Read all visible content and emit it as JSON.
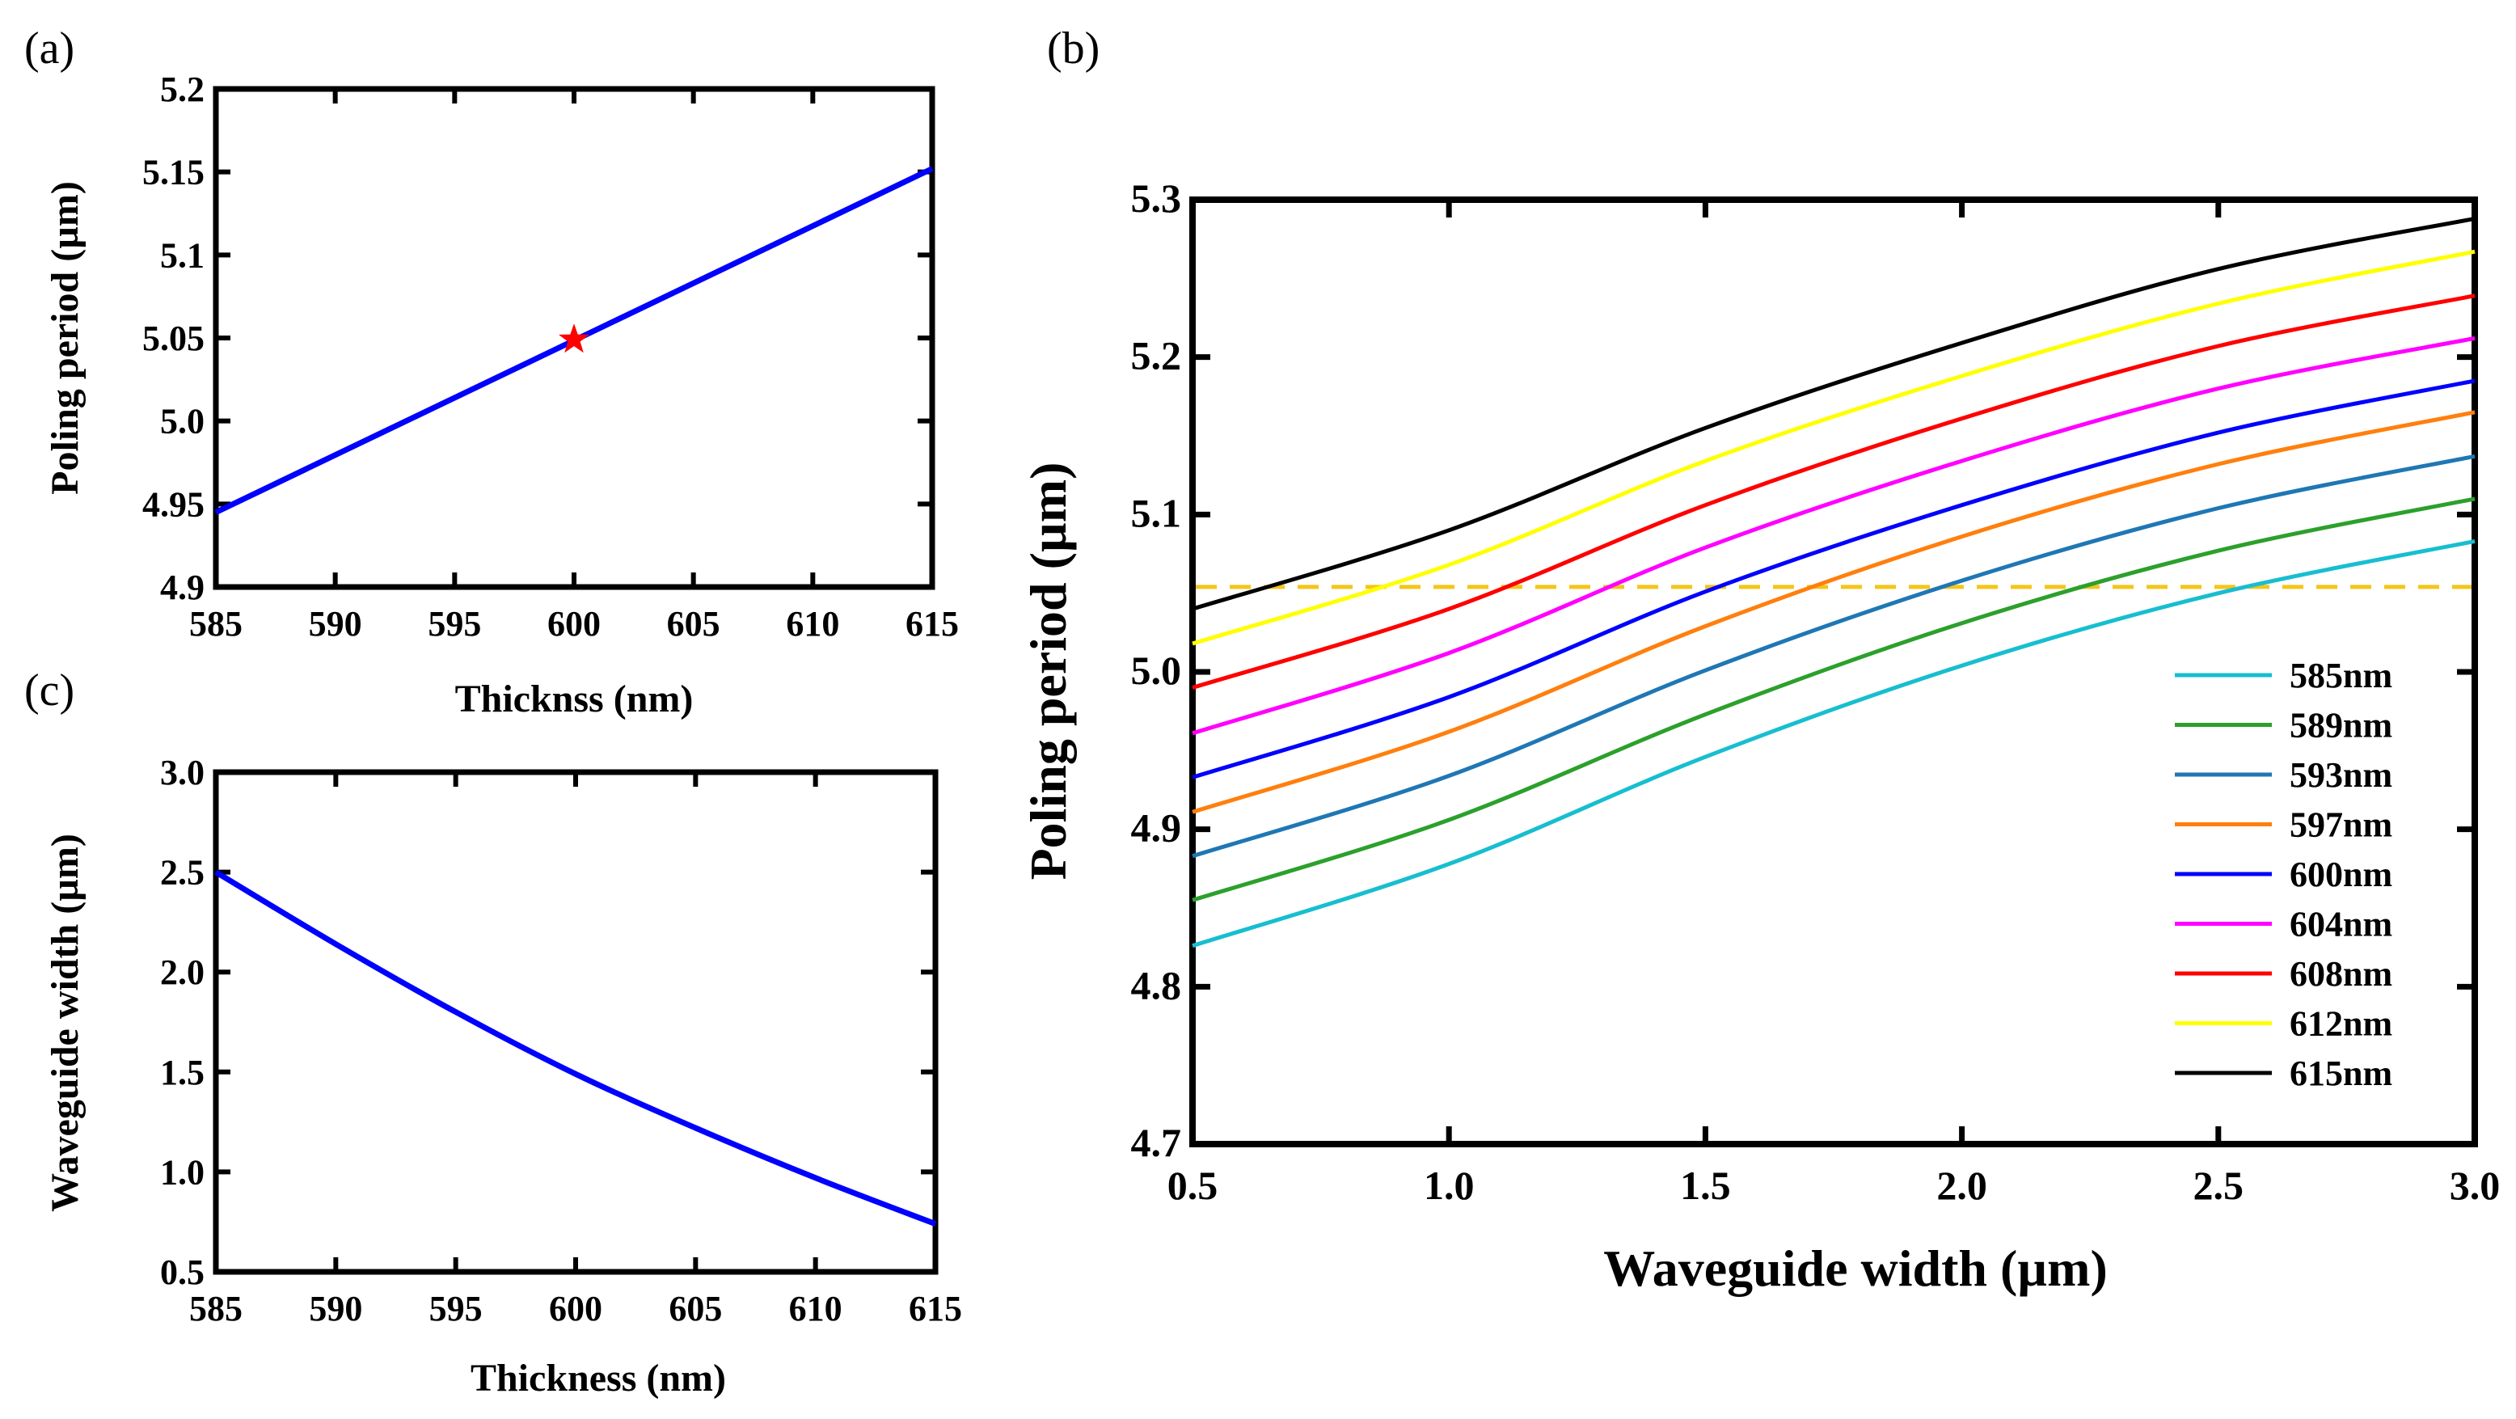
{
  "chart_data": [
    {
      "panel": "(a)",
      "type": "line",
      "xlabel": "Thicknss (nm)",
      "ylabel": "Poling period (µm)",
      "xlim": [
        585,
        615
      ],
      "ylim": [
        4.9,
        5.2
      ],
      "xticks": [
        "585",
        "590",
        "595",
        "600",
        "605",
        "610",
        "615"
      ],
      "yticks": [
        "4.9",
        "4.95",
        "5.0",
        "5.05",
        "5.1",
        "5.15",
        "5.2"
      ],
      "series": [
        {
          "name": "poling period",
          "color": "#0000ff",
          "x": [
            585,
            615
          ],
          "y": [
            4.945,
            5.152
          ]
        }
      ],
      "marker": {
        "x": 600,
        "y": 5.049,
        "color": "#ff0000",
        "symbol": "star"
      }
    },
    {
      "panel": "(b)",
      "type": "line",
      "xlabel": "Waveguide width (µm)",
      "ylabel": "Poling period (µm)",
      "xlim": [
        0.5,
        3.0
      ],
      "ylim": [
        4.7,
        5.3
      ],
      "xticks": [
        "0.5",
        "1.0",
        "1.5",
        "2.0",
        "2.5",
        "3.0"
      ],
      "yticks": [
        "4.7",
        "4.8",
        "4.9",
        "5.0",
        "5.1",
        "5.2",
        "5.3"
      ],
      "legend_position": "lower-right",
      "reference_line": {
        "y": 5.054,
        "color": "#f5c518",
        "style": "dashed"
      },
      "x": [
        0.5,
        1.0,
        1.5,
        2.0,
        2.5,
        3.0
      ],
      "series": [
        {
          "name": "585nm",
          "color": "#17becf",
          "values": [
            4.826,
            4.878,
            4.946,
            5.004,
            5.05,
            5.083
          ]
        },
        {
          "name": "589nm",
          "color": "#2ca02c",
          "values": [
            4.855,
            4.906,
            4.973,
            5.031,
            5.077,
            5.11
          ]
        },
        {
          "name": "593nm",
          "color": "#1f77b4",
          "values": [
            4.883,
            4.934,
            5.001,
            5.058,
            5.104,
            5.137
          ]
        },
        {
          "name": "597nm",
          "color": "#ff7f0e",
          "values": [
            4.911,
            4.962,
            5.029,
            5.086,
            5.132,
            5.165
          ]
        },
        {
          "name": "600nm",
          "color": "#0000ff",
          "values": [
            4.933,
            4.984,
            5.051,
            5.106,
            5.152,
            5.185
          ]
        },
        {
          "name": "604nm",
          "color": "#ff00ff",
          "values": [
            4.961,
            5.012,
            5.079,
            5.134,
            5.18,
            5.212
          ]
        },
        {
          "name": "608nm",
          "color": "#ff0000",
          "values": [
            4.99,
            5.04,
            5.106,
            5.161,
            5.207,
            5.239
          ]
        },
        {
          "name": "612nm",
          "color": "#ffff00",
          "values": [
            5.018,
            5.068,
            5.134,
            5.188,
            5.234,
            5.267
          ]
        },
        {
          "name": "615nm",
          "color": "#000000",
          "values": [
            5.04,
            5.09,
            5.155,
            5.209,
            5.256,
            5.288
          ]
        }
      ]
    },
    {
      "panel": "(c)",
      "type": "line",
      "xlabel": "Thickness (nm)",
      "ylabel": "Waveguide width (µm)",
      "xlim": [
        585,
        615
      ],
      "ylim": [
        0.5,
        3.0
      ],
      "xticks": [
        "585",
        "590",
        "595",
        "600",
        "605",
        "610",
        "615"
      ],
      "yticks": [
        "0.5",
        "1.0",
        "1.5",
        "2.0",
        "2.5",
        "3.0"
      ],
      "series": [
        {
          "name": "waveguide width",
          "color": "#0000ff",
          "x": [
            585,
            590,
            595,
            600,
            605,
            610,
            615
          ],
          "y": [
            2.5,
            2.14,
            1.8,
            1.49,
            1.22,
            0.97,
            0.74
          ]
        }
      ]
    }
  ]
}
